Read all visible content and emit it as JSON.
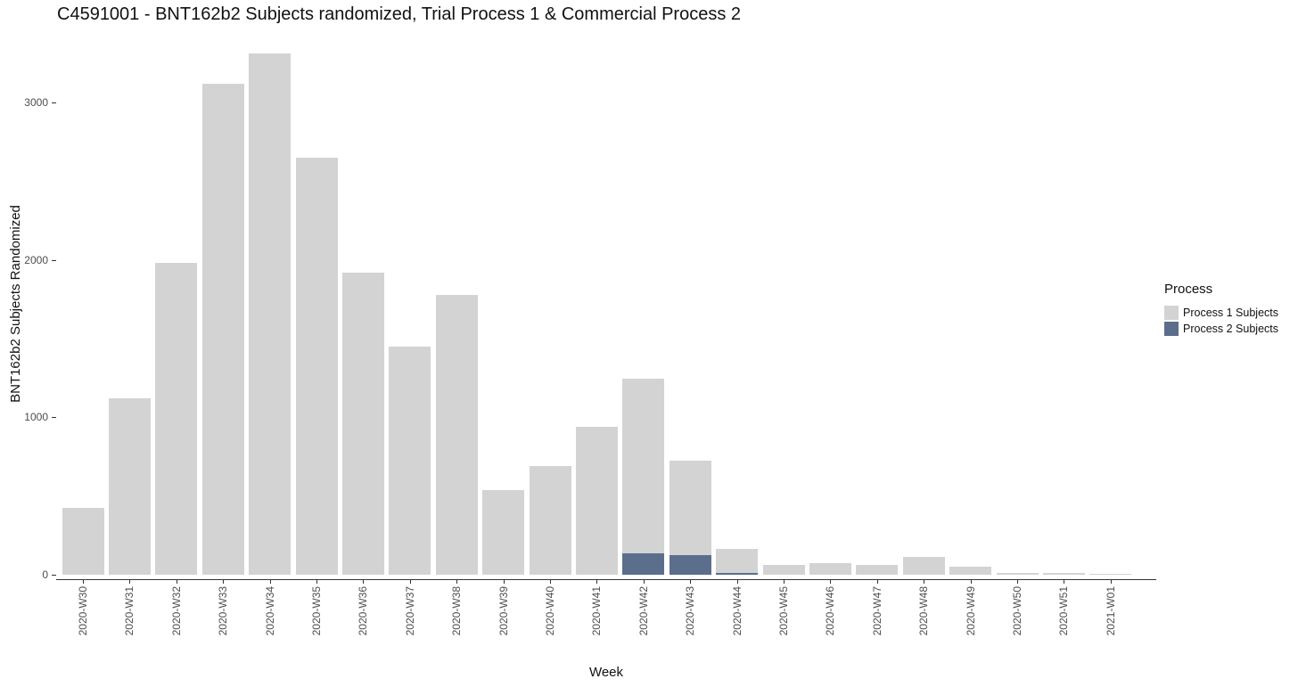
{
  "chart_data": {
    "type": "bar",
    "stacked": true,
    "title": "C4591001 - BNT162b2 Subjects randomized, Trial Process 1 & Commercial Process 2",
    "xlabel": "Week",
    "ylabel": "BNT162b2 Subjects Randomized",
    "ylim": [
      0,
      3480
    ],
    "yticks": [
      0,
      1000,
      2000,
      3000
    ],
    "grid": false,
    "legend": {
      "title": "Process",
      "position": "right"
    },
    "categories": [
      "2020-W30",
      "2020-W31",
      "2020-W32",
      "2020-W33",
      "2020-W34",
      "2020-W35",
      "2020-W36",
      "2020-W37",
      "2020-W38",
      "2020-W39",
      "2020-W40",
      "2020-W41",
      "2020-W42",
      "2020-W43",
      "2020-W44",
      "2020-W45",
      "2020-W46",
      "2020-W47",
      "2020-W48",
      "2020-W49",
      "2020-W50",
      "2020-W51",
      "2021-W01"
    ],
    "series": [
      {
        "name": "Process 1 Subjects",
        "color": "#d3d3d3",
        "values": [
          425,
          1120,
          1980,
          3120,
          3310,
          2650,
          1920,
          1450,
          1780,
          540,
          690,
          940,
          1110,
          600,
          155,
          65,
          75,
          60,
          115,
          50,
          10,
          10,
          8
        ]
      },
      {
        "name": "Process 2 Subjects",
        "color": "#5b6e8c",
        "values": [
          0,
          0,
          0,
          0,
          0,
          0,
          0,
          0,
          0,
          0,
          0,
          0,
          135,
          125,
          10,
          0,
          0,
          0,
          0,
          0,
          0,
          0,
          0
        ]
      }
    ],
    "stack_order_bottom_first": [
      "Process 2 Subjects",
      "Process 1 Subjects"
    ],
    "axis_color": "#333333",
    "tick_text_color": "#4d4d4d"
  }
}
